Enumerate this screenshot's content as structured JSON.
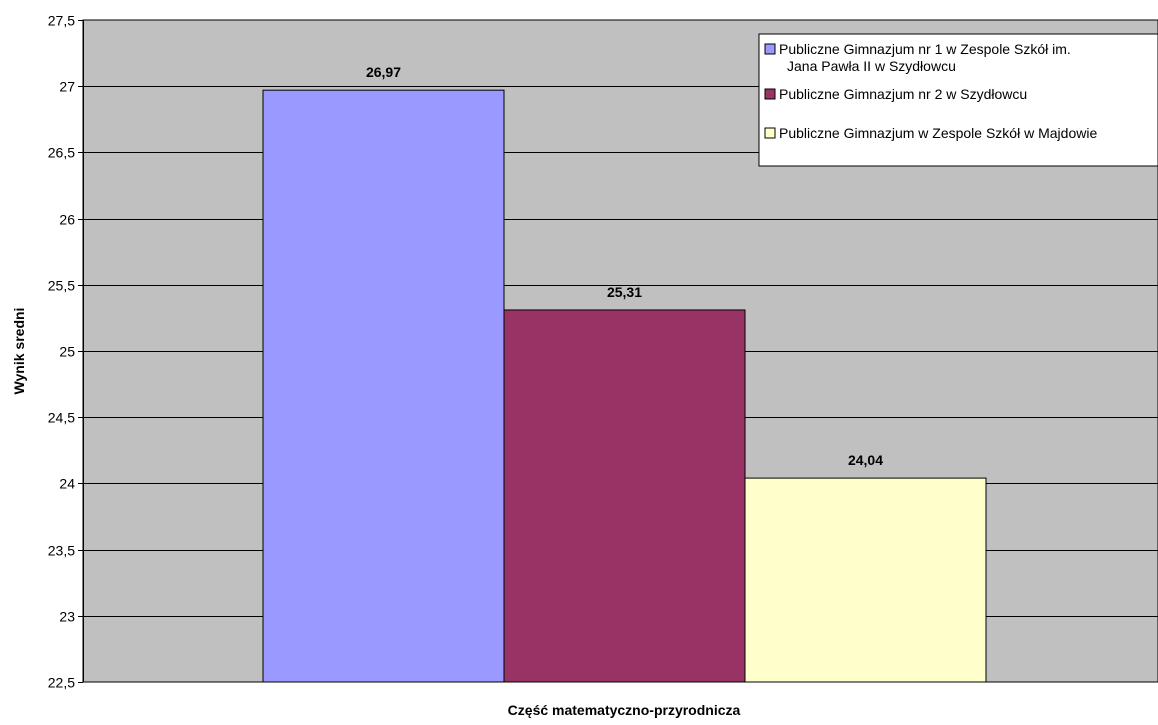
{
  "chart_data": {
    "type": "bar",
    "categories": [
      "Część matematyczno-przyrodnicza"
    ],
    "series": [
      {
        "name": "Publiczne Gimnazjum nr 1 w Zespole Szkół im. Jana Pawła II w Szydłowcu",
        "name_lines": [
          "Publiczne Gimnazjum nr 1 w Zespole Szkół im.",
          "Jana Pawła II w Szydłowcu"
        ],
        "values": [
          26.97
        ],
        "label": "26,97",
        "color": "#9999ff"
      },
      {
        "name": "Publiczne Gimnazjum nr 2 w Szydłowcu",
        "name_lines": [
          "Publiczne Gimnazjum nr 2 w Szydłowcu"
        ],
        "values": [
          25.31
        ],
        "label": "25,31",
        "color": "#993366"
      },
      {
        "name": "Publiczne Gimnazjum w Zespole Szkół w Majdowie",
        "name_lines": [
          "Publiczne Gimnazjum w Zespole Szkół w Majdowie"
        ],
        "values": [
          24.04
        ],
        "label": "24,04",
        "color": "#ffffcc"
      }
    ],
    "xlabel": "Część matematyczno-przyrodnicza",
    "ylabel": "Wynik sredni",
    "ylim": [
      22.5,
      27.5
    ],
    "yticks": [
      22.5,
      23,
      23.5,
      24,
      24.5,
      25,
      25.5,
      26,
      26.5,
      27,
      27.5
    ],
    "ytick_labels": [
      "22,5",
      "23",
      "23,5",
      "24",
      "24,5",
      "25",
      "25,5",
      "26",
      "26,5",
      "27",
      "27,5"
    ],
    "grid": true,
    "plot_background": "#c0c0c0",
    "legend_position": "top-right"
  }
}
